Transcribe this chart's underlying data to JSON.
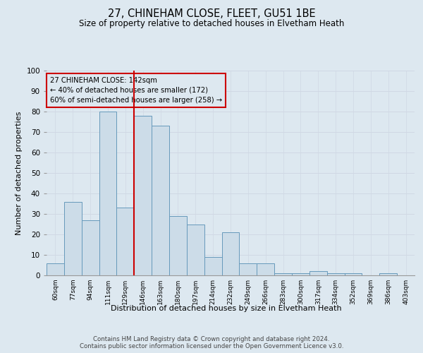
{
  "title_line1": "27, CHINEHAM CLOSE, FLEET, GU51 1BE",
  "title_line2": "Size of property relative to detached houses in Elvetham Heath",
  "xlabel": "Distribution of detached houses by size in Elvetham Heath",
  "ylabel": "Number of detached properties",
  "bin_labels": [
    "60sqm",
    "77sqm",
    "94sqm",
    "111sqm",
    "129sqm",
    "146sqm",
    "163sqm",
    "180sqm",
    "197sqm",
    "214sqm",
    "232sqm",
    "249sqm",
    "266sqm",
    "283sqm",
    "300sqm",
    "317sqm",
    "334sqm",
    "352sqm",
    "369sqm",
    "386sqm",
    "403sqm"
  ],
  "bar_heights": [
    6,
    36,
    27,
    80,
    33,
    78,
    73,
    29,
    25,
    9,
    21,
    6,
    6,
    1,
    1,
    2,
    1,
    1,
    0,
    1,
    0
  ],
  "bar_color": "#ccdce8",
  "bar_edge_color": "#6699bb",
  "bar_edge_width": 0.7,
  "vline_x": 4.5,
  "vline_color": "#cc0000",
  "annotation_text": "27 CHINEHAM CLOSE: 142sqm\n← 40% of detached houses are smaller (172)\n60% of semi-detached houses are larger (258) →",
  "annotation_box_color": "#cc0000",
  "ylim": [
    0,
    100
  ],
  "yticks": [
    0,
    10,
    20,
    30,
    40,
    50,
    60,
    70,
    80,
    90,
    100
  ],
  "grid_color": "#d0d8e4",
  "bg_color": "#dde8f0",
  "footer": "Contains HM Land Registry data © Crown copyright and database right 2024.\nContains public sector information licensed under the Open Government Licence v3.0."
}
